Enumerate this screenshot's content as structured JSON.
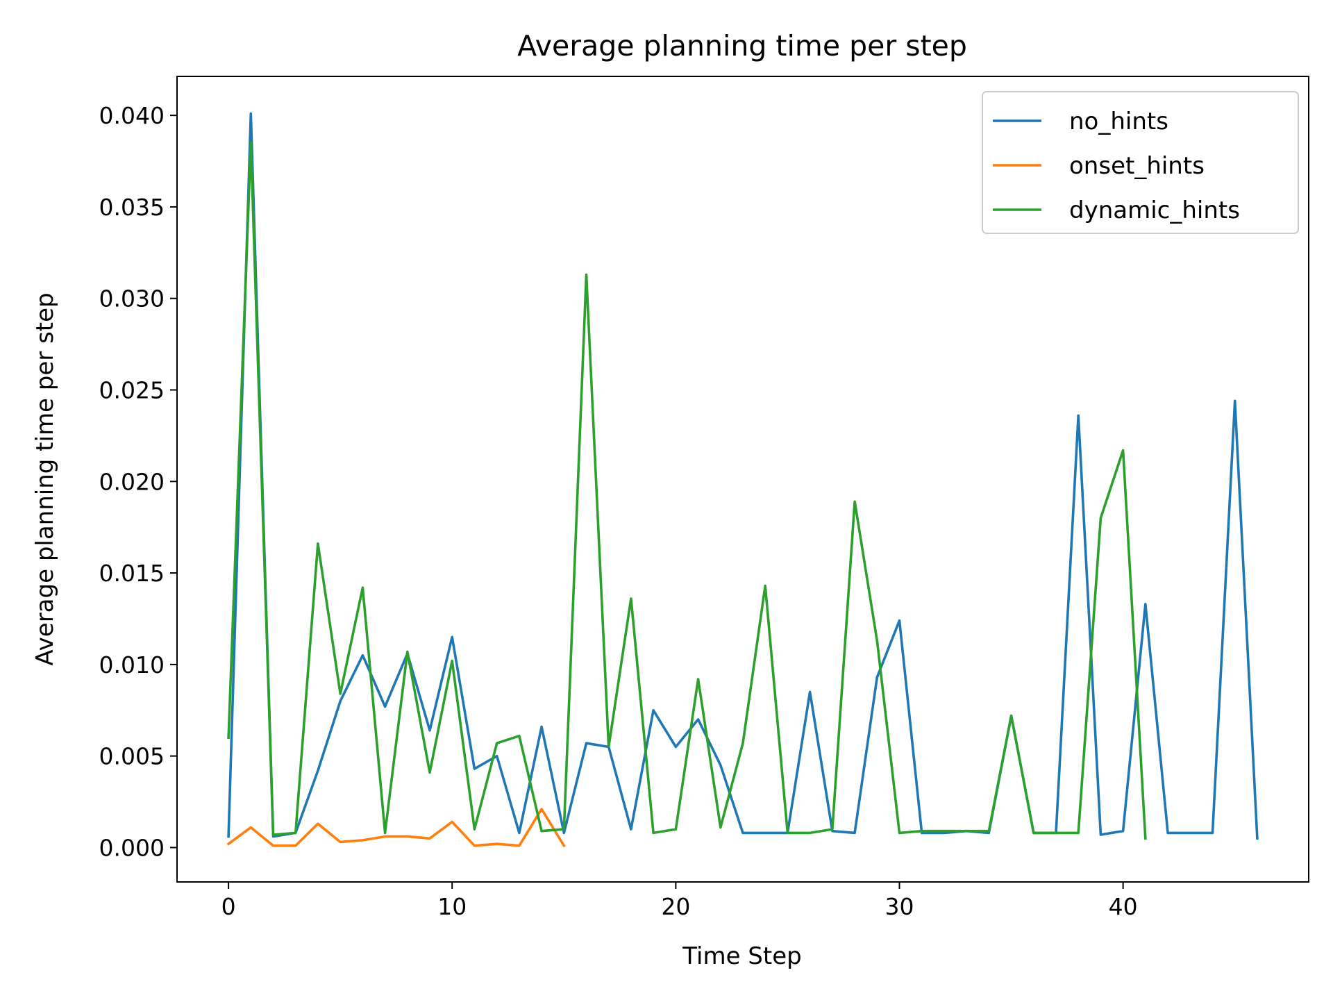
{
  "chart_data": {
    "type": "line",
    "title": "Average planning time per step",
    "xlabel": "Time Step",
    "ylabel": "Average planning time per step",
    "xlim": [
      -2.3,
      48.3
    ],
    "ylim": [
      -0.00188,
      0.04213
    ],
    "xticks": [
      0,
      10,
      20,
      30,
      40
    ],
    "yticks": [
      0.0,
      0.005,
      0.01,
      0.015,
      0.02,
      0.025,
      0.03,
      0.035,
      0.04
    ],
    "ytick_labels": [
      "0.000",
      "0.005",
      "0.010",
      "0.015",
      "0.020",
      "0.025",
      "0.030",
      "0.035",
      "0.040"
    ],
    "xtick_labels": [
      "0",
      "10",
      "20",
      "30",
      "40"
    ],
    "grid": false,
    "legend_position": "top-right",
    "series": [
      {
        "name": "no_hints",
        "color": "#1f77b4",
        "x": [
          0,
          1,
          2,
          3,
          4,
          5,
          6,
          7,
          8,
          9,
          10,
          11,
          12,
          13,
          14,
          15,
          16,
          17,
          18,
          19,
          20,
          21,
          22,
          23,
          24,
          25,
          26,
          27,
          28,
          29,
          30,
          31,
          32,
          33,
          34,
          35,
          36,
          37,
          38,
          39,
          40,
          41,
          42,
          43,
          44,
          45,
          46
        ],
        "values": [
          0.0006,
          0.0401,
          0.0006,
          0.0008,
          0.0042,
          0.008,
          0.0105,
          0.0077,
          0.0106,
          0.0064,
          0.0115,
          0.0043,
          0.005,
          0.0008,
          0.0066,
          0.0008,
          0.0057,
          0.0055,
          0.001,
          0.0075,
          0.0055,
          0.007,
          0.0045,
          0.0008,
          0.0008,
          0.0008,
          0.0085,
          0.0009,
          0.0008,
          0.0093,
          0.0124,
          0.0008,
          0.0008,
          0.0009,
          0.0008,
          0.0072,
          0.0008,
          0.0008,
          0.0236,
          0.0007,
          0.0009,
          0.0133,
          0.0008,
          0.0008,
          0.0008,
          0.0244,
          0.0005
        ]
      },
      {
        "name": "onset_hints",
        "color": "#ff7f0e",
        "x": [
          0,
          1,
          2,
          3,
          4,
          5,
          6,
          7,
          8,
          9,
          10,
          11,
          12,
          13,
          14,
          15
        ],
        "values": [
          0.0002,
          0.0011,
          0.0001,
          0.0001,
          0.0013,
          0.0003,
          0.0004,
          0.0006,
          0.0006,
          0.0005,
          0.0014,
          0.0001,
          0.0002,
          0.0001,
          0.0021,
          0.0001
        ]
      },
      {
        "name": "dynamic_hints",
        "color": "#2ca02c",
        "x": [
          0,
          1,
          2,
          3,
          4,
          5,
          6,
          7,
          8,
          9,
          10,
          11,
          12,
          13,
          14,
          15,
          16,
          17,
          18,
          19,
          20,
          21,
          22,
          23,
          24,
          25,
          26,
          27,
          28,
          29,
          30,
          31,
          32,
          33,
          34,
          35,
          36,
          37,
          38,
          39,
          40,
          41
        ],
        "values": [
          0.006,
          0.0385,
          0.0007,
          0.0008,
          0.0166,
          0.0084,
          0.0142,
          0.0008,
          0.0107,
          0.0041,
          0.0102,
          0.001,
          0.0057,
          0.0061,
          0.0009,
          0.001,
          0.0313,
          0.0055,
          0.0136,
          0.0008,
          0.001,
          0.0092,
          0.0011,
          0.0057,
          0.0143,
          0.0008,
          0.0008,
          0.001,
          0.0189,
          0.0113,
          0.0008,
          0.0009,
          0.0009,
          0.0009,
          0.0009,
          0.0072,
          0.0008,
          0.0008,
          0.0008,
          0.018,
          0.0217,
          0.0005
        ]
      }
    ]
  }
}
